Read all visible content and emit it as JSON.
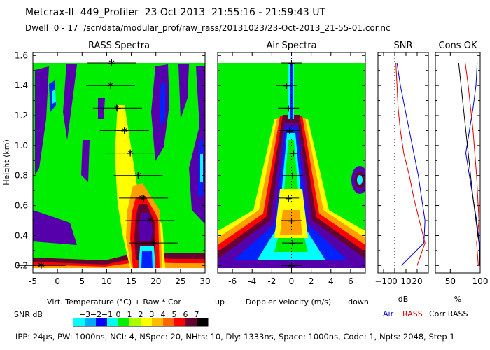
{
  "header": {
    "title": "Metcrax-II  449_Profiler  23 Oct 2013  21:55:16 - 21:59:43 UT",
    "dwell": "Dwell  0 - 17  /scr/data/modular_prof/raw_rass/20131023/23-Oct-2013_21-55-01.cor.nc"
  },
  "footer": "IPP: 24µs, PW: 1000ns, NCI: 4, NSpec: 20, NHts: 10, Dly: 1333ns, Space: 1000ns, Code: 1, Npts: 2048, Step 1",
  "chart_data": [
    {
      "panel": "rass",
      "type": "heatmap",
      "title": "RASS Spectra",
      "xlabel": "Virt. Temperature (°C)  + Raw  * Cor",
      "ylabel": "Height (km)",
      "xlim": [
        -5,
        30
      ],
      "ylim": [
        0.15,
        1.62
      ],
      "xticks": [
        -5,
        0,
        5,
        10,
        15,
        20,
        25,
        30
      ],
      "yticks": [
        0.2,
        0.4,
        0.6,
        0.8,
        1.0,
        1.2,
        1.4,
        1.6
      ],
      "points": [
        {
          "height": 1.55,
          "raw": 11.0,
          "cor": 11.0
        },
        {
          "height": 1.4,
          "raw": 10.8,
          "cor": 10.8
        },
        {
          "height": 1.25,
          "raw": 12.2,
          "cor": 12.0
        },
        {
          "height": 1.1,
          "raw": 13.6,
          "cor": 13.6
        },
        {
          "height": 0.95,
          "raw": 14.8,
          "cor": 14.8
        },
        {
          "height": 0.8,
          "raw": 16.4,
          "cor": 16.4
        },
        {
          "height": 0.65,
          "raw": 17.5,
          "cor": 17.2
        },
        {
          "height": 0.5,
          "raw": 18.8,
          "cor": 18.8
        },
        {
          "height": 0.35,
          "raw": 19.5,
          "cor": 19.5
        },
        {
          "height": 0.2,
          "raw": -3.3,
          "cor": -3.3
        }
      ]
    },
    {
      "panel": "air",
      "type": "heatmap",
      "title": "Air Spectra",
      "xlabel": "Doppler Velocity (m/s)",
      "left_label": "up",
      "right_label": "down",
      "xlim": [
        -7.5,
        7.5
      ],
      "xticks": [
        -6,
        -4,
        -2,
        0,
        2,
        4,
        6
      ],
      "points": [
        {
          "height": 1.55,
          "vel": 0.0
        },
        {
          "height": 1.4,
          "vel": -0.5
        },
        {
          "height": 1.25,
          "vel": -0.3
        },
        {
          "height": 1.1,
          "vel": -0.2
        },
        {
          "height": 0.95,
          "vel": 0.2
        },
        {
          "height": 0.8,
          "vel": 0.1
        },
        {
          "height": 0.65,
          "vel": -0.3
        },
        {
          "height": 0.5,
          "vel": 0.0
        },
        {
          "height": 0.35,
          "vel": 0.1
        },
        {
          "height": 0.2,
          "vel": 0.0
        }
      ]
    },
    {
      "panel": "snr",
      "type": "line",
      "title": "SNR",
      "xlabel": "dB",
      "xlim": [
        -15,
        30
      ],
      "xticks": [
        -10,
        0,
        10,
        20
      ],
      "xticklabels": [
        "−10",
        "0",
        "10",
        "20"
      ],
      "heights": [
        1.55,
        1.4,
        1.25,
        1.1,
        0.95,
        0.8,
        0.65,
        0.5,
        0.35,
        0.2
      ],
      "series": [
        {
          "name": "Air",
          "color": "#0000cc",
          "values": [
            2,
            5,
            9,
            13,
            17,
            21,
            24,
            27,
            26,
            6
          ]
        },
        {
          "name": "RASS",
          "color": "#dd0000",
          "values": [
            1,
            2,
            3,
            5,
            8,
            13,
            17,
            22,
            27,
            20
          ]
        }
      ]
    },
    {
      "panel": "cons",
      "type": "line",
      "title": "Cons OK",
      "xlabel": "%",
      "xlim": [
        25,
        100
      ],
      "xticks": [
        50,
        100
      ],
      "heights": [
        1.55,
        1.4,
        1.25,
        1.1,
        0.95,
        0.8,
        0.65,
        0.5,
        0.35,
        0.2
      ],
      "series": [
        {
          "name": "Air",
          "color": "#0000cc",
          "values": [
            95,
            93,
            88,
            82,
            76,
            82,
            88,
            94,
            99,
            99
          ]
        },
        {
          "name": "RASS",
          "color": "#dd0000",
          "values": [
            75,
            80,
            84,
            88,
            91,
            94,
            96,
            98,
            94,
            97
          ]
        },
        {
          "name": "Corr RASS",
          "color": "#000000",
          "values": [
            64,
            68,
            72,
            76,
            80,
            84,
            88,
            93,
            98,
            100
          ]
        }
      ]
    }
  ],
  "colorbar": {
    "label": "SNR dB",
    "ticks": [
      "−3",
      "−2",
      "−1",
      "0",
      "1",
      "2",
      "3",
      "4",
      "5",
      "6",
      "7"
    ],
    "colors": [
      "#00ffff",
      "#00aaff",
      "#0000ff",
      "#00ffee",
      "#00ee00",
      "#aaff00",
      "#ffff00",
      "#ffbb00",
      "#ff6600",
      "#ff0000",
      "#660033",
      "#000000"
    ]
  },
  "legend": [
    {
      "label": "Air",
      "color": "#0000cc"
    },
    {
      "label": "RASS",
      "color": "#dd0000"
    },
    {
      "label": "Corr RASS",
      "color": "#000000"
    }
  ],
  "colors": {
    "heat_green": "#00ee00",
    "heat_cyan": "#00ffff",
    "heat_blue": "#0022ff",
    "heat_purple": "#5500aa",
    "heat_yellow": "#ffff00",
    "heat_orange": "#ffa000",
    "heat_red": "#ff0000",
    "heat_dark": "#660033"
  }
}
